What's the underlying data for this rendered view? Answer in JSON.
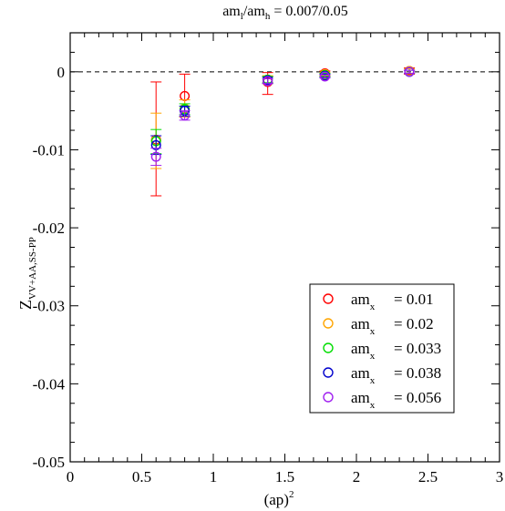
{
  "chart_data": {
    "type": "scatter",
    "title": {
      "base": "am",
      "sub1": "l",
      "mid": "/am",
      "sub2": "h",
      "rest": " = 0.007/0.05"
    },
    "xlabel": {
      "base": "(ap)",
      "sup": "2"
    },
    "ylabel": {
      "base": "Z",
      "sub": "VV+AA,SS-PP"
    },
    "xlim": [
      0,
      3
    ],
    "ylim": [
      -0.05,
      0.005
    ],
    "x_ticks": [
      {
        "value": 0,
        "label": "0"
      },
      {
        "value": 0.5,
        "label": "0.5"
      },
      {
        "value": 1,
        "label": "1"
      },
      {
        "value": 1.5,
        "label": "1.5"
      },
      {
        "value": 2,
        "label": "2"
      },
      {
        "value": 2.5,
        "label": "2.5"
      },
      {
        "value": 3,
        "label": "3"
      }
    ],
    "y_ticks": [
      {
        "value": 0,
        "label": "0"
      },
      {
        "value": -0.01,
        "label": "-0.01"
      },
      {
        "value": -0.02,
        "label": "-0.02"
      },
      {
        "value": -0.03,
        "label": "-0.03"
      },
      {
        "value": -0.04,
        "label": "-0.04"
      },
      {
        "value": -0.05,
        "label": "-0.05"
      }
    ],
    "x_minor_step": 0.1,
    "y_minor_step": 0.0025,
    "reference_line": {
      "y": 0,
      "style": "dashed"
    },
    "legend_position": "lower-right",
    "series": [
      {
        "name": {
          "base": "am",
          "sub": "x",
          "rest": "= 0.01"
        },
        "color": "#ff0000",
        "points": [
          {
            "x": 0.6,
            "y": -0.0087,
            "lo": -0.0159,
            "hi": -0.0013
          },
          {
            "x": 0.8,
            "y": -0.0031,
            "lo": -0.0058,
            "hi": -0.0003
          },
          {
            "x": 1.38,
            "y": -0.0013,
            "lo": -0.0029,
            "hi": -0.0001
          },
          {
            "x": 1.78,
            "y": -0.0002,
            "lo": -0.0005,
            "hi": 0.0001
          },
          {
            "x": 2.37,
            "y": 0.0001,
            "lo": -0.0003,
            "hi": 0.0005
          }
        ]
      },
      {
        "name": {
          "base": "am",
          "sub": "x",
          "rest": "= 0.02"
        },
        "color": "#ffa500",
        "points": [
          {
            "x": 0.6,
            "y": -0.0088,
            "lo": -0.0124,
            "hi": -0.0053
          },
          {
            "x": 0.8,
            "y": -0.0047,
            "lo": -0.0058,
            "hi": -0.0036
          },
          {
            "x": 1.38,
            "y": -0.001,
            "lo": -0.0015,
            "hi": -0.0005
          },
          {
            "x": 1.78,
            "y": -0.0003,
            "lo": -0.0005,
            "hi": -0.0001
          },
          {
            "x": 2.37,
            "y": 0.0001,
            "lo": -0.0002,
            "hi": 0.0004
          }
        ]
      },
      {
        "name": {
          "base": "am",
          "sub": "x",
          "rest": "= 0.033"
        },
        "color": "#00dd00",
        "points": [
          {
            "x": 0.6,
            "y": -0.0089,
            "lo": -0.0105,
            "hi": -0.0074
          },
          {
            "x": 0.8,
            "y": -0.0048,
            "lo": -0.0055,
            "hi": -0.0041
          },
          {
            "x": 1.38,
            "y": -0.001,
            "lo": -0.0014,
            "hi": -0.0006
          },
          {
            "x": 1.78,
            "y": -0.0004,
            "lo": -0.0006,
            "hi": -0.0002
          },
          {
            "x": 2.37,
            "y": 0.0,
            "lo": -0.0002,
            "hi": 0.0002
          }
        ]
      },
      {
        "name": {
          "base": "am",
          "sub": "x",
          "rest": "= 0.038"
        },
        "color": "#0000cc",
        "points": [
          {
            "x": 0.6,
            "y": -0.0094,
            "lo": -0.0106,
            "hi": -0.0082
          },
          {
            "x": 0.8,
            "y": -0.005,
            "lo": -0.0057,
            "hi": -0.0044
          },
          {
            "x": 1.38,
            "y": -0.0011,
            "lo": -0.0015,
            "hi": -0.0007
          },
          {
            "x": 1.78,
            "y": -0.0005,
            "lo": -0.0007,
            "hi": -0.0003
          },
          {
            "x": 2.37,
            "y": 0.0,
            "lo": -0.0002,
            "hi": 0.0002
          }
        ]
      },
      {
        "name": {
          "base": "am",
          "sub": "x",
          "rest": "= 0.056"
        },
        "color": "#a020f0",
        "points": [
          {
            "x": 0.6,
            "y": -0.0109,
            "lo": -0.012,
            "hi": -0.0098
          },
          {
            "x": 0.8,
            "y": -0.0056,
            "lo": -0.0062,
            "hi": -0.005
          },
          {
            "x": 1.38,
            "y": -0.0012,
            "lo": -0.0015,
            "hi": -0.0009
          },
          {
            "x": 1.78,
            "y": -0.0006,
            "lo": -0.0008,
            "hi": -0.0004
          },
          {
            "x": 2.37,
            "y": 0.0,
            "lo": -0.0002,
            "hi": 0.0002
          }
        ]
      }
    ]
  }
}
